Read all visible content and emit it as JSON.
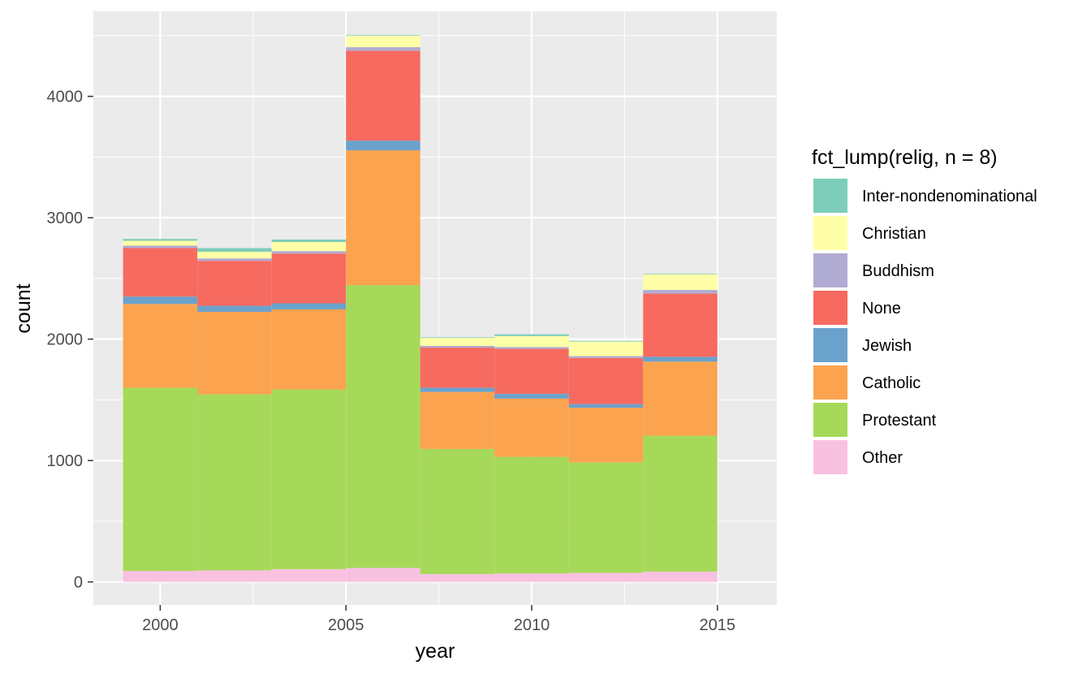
{
  "chart_data": {
    "type": "bar",
    "stacked": true,
    "xlabel": "year",
    "ylabel": "count",
    "xlim": [
      1998.2,
      2016.6
    ],
    "ylim": [
      -190,
      4700
    ],
    "x_ticks": [
      2000,
      2005,
      2010,
      2015
    ],
    "y_ticks": [
      0,
      1000,
      2000,
      3000,
      4000
    ],
    "grid": true,
    "legend": {
      "title": "fct_lump(relig, n = 8)",
      "position": "right"
    },
    "bins": [
      {
        "x0": 1999,
        "x1": 2001
      },
      {
        "x0": 2001,
        "x1": 2003
      },
      {
        "x0": 2003,
        "x1": 2005
      },
      {
        "x0": 2005,
        "x1": 2007
      },
      {
        "x0": 2007,
        "x1": 2009
      },
      {
        "x0": 2009,
        "x1": 2011
      },
      {
        "x0": 2011,
        "x1": 2013
      },
      {
        "x0": 2013,
        "x1": 2015
      }
    ],
    "series": [
      {
        "name": "Other",
        "color": "#F9C1E0",
        "values": [
          90,
          95,
          105,
          115,
          65,
          70,
          75,
          85
        ]
      },
      {
        "name": "Protestant",
        "color": "#A6D959",
        "values": [
          1510,
          1450,
          1480,
          2330,
          1030,
          960,
          910,
          1120
        ]
      },
      {
        "name": "Catholic",
        "color": "#FBA34E",
        "values": [
          690,
          680,
          660,
          1110,
          470,
          480,
          450,
          610
        ]
      },
      {
        "name": "Jewish",
        "color": "#6BA2CC",
        "values": [
          60,
          50,
          50,
          80,
          35,
          40,
          30,
          40
        ]
      },
      {
        "name": "None",
        "color": "#F76A60",
        "values": [
          400,
          370,
          410,
          740,
          330,
          370,
          380,
          520
        ]
      },
      {
        "name": "Buddhism",
        "color": "#B0ABD2",
        "values": [
          20,
          20,
          20,
          30,
          15,
          15,
          15,
          30
        ]
      },
      {
        "name": "Christian",
        "color": "#FFFFA8",
        "values": [
          40,
          55,
          75,
          95,
          65,
          90,
          120,
          130
        ]
      },
      {
        "name": "Inter-nondenominational",
        "color": "#7ECDBB",
        "values": [
          15,
          30,
          20,
          5,
          5,
          15,
          5,
          5
        ]
      }
    ],
    "legend_order": [
      "Inter-nondenominational",
      "Christian",
      "Buddhism",
      "None",
      "Jewish",
      "Catholic",
      "Protestant",
      "Other"
    ]
  }
}
